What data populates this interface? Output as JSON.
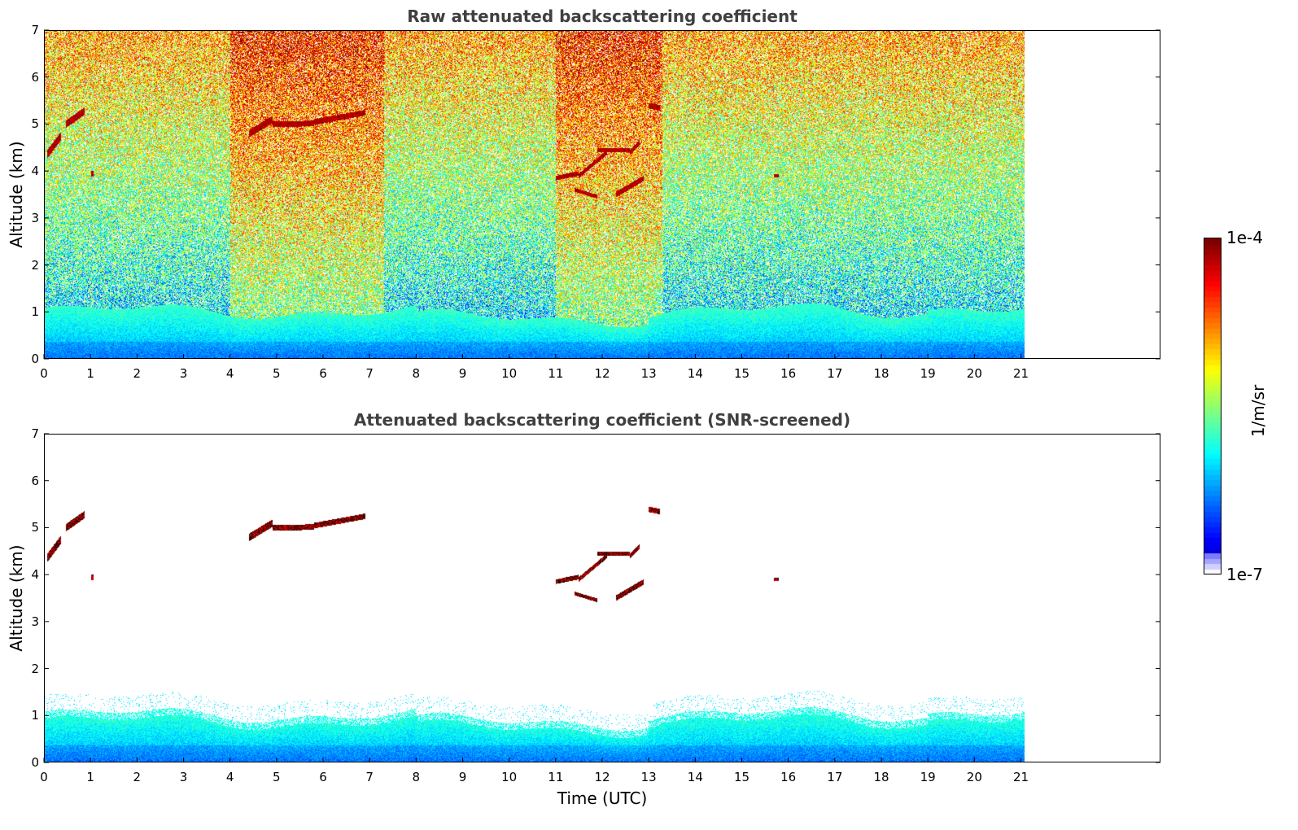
{
  "chart_data": [
    {
      "type": "heatmap",
      "title": "Raw attenuated backscattering coefficient",
      "xlabel": "",
      "ylabel": "Altitude (km)",
      "xlim": [
        0,
        24
      ],
      "ylim": [
        0,
        7
      ],
      "xticks": [
        "0",
        "1",
        "2",
        "3",
        "4",
        "5",
        "6",
        "7",
        "8",
        "9",
        "10",
        "11",
        "12",
        "13",
        "14",
        "15",
        "16",
        "17",
        "18",
        "19",
        "20",
        "21"
      ],
      "yticks": [
        "0",
        "1",
        "2",
        "3",
        "4",
        "5",
        "6",
        "7"
      ],
      "data_x_range": [
        0,
        21.1
      ],
      "grid": false,
      "features": [
        {
          "name": "boundary layer",
          "x_start": 0,
          "x_end": 21.1,
          "top_km": 1.1
        },
        {
          "name": "cloud",
          "x_start": 0.0,
          "x_end": 0.9,
          "alt_km_min": 4.2,
          "alt_km_max": 5.3
        },
        {
          "name": "cloud",
          "x_start": 4.4,
          "x_end": 6.9,
          "alt_km_min": 4.7,
          "alt_km_max": 5.3
        },
        {
          "name": "cloud",
          "x_start": 11.0,
          "x_end": 13.3,
          "alt_km_min": 3.3,
          "alt_km_max": 4.7
        },
        {
          "name": "cloud",
          "x_start": 13.0,
          "x_end": 13.3,
          "alt_km_min": 5.3,
          "alt_km_max": 5.5
        }
      ]
    },
    {
      "type": "heatmap",
      "title": "Attenuated backscattering coefficient (SNR-screened)",
      "xlabel": "Time (UTC)",
      "ylabel": "Altitude (km)",
      "xlim": [
        0,
        24
      ],
      "ylim": [
        0,
        7
      ],
      "xticks": [
        "0",
        "1",
        "2",
        "3",
        "4",
        "5",
        "6",
        "7",
        "8",
        "9",
        "10",
        "11",
        "12",
        "13",
        "14",
        "15",
        "16",
        "17",
        "18",
        "19",
        "20",
        "21"
      ],
      "yticks": [
        "0",
        "1",
        "2",
        "3",
        "4",
        "5",
        "6",
        "7"
      ],
      "data_x_range": [
        0,
        21.1
      ],
      "grid": false
    }
  ],
  "colorbar": {
    "max_label": "1e-4",
    "min_label": "1e-7",
    "unit_label": "1/m/sr",
    "scale": "log",
    "colormap": "jet"
  }
}
